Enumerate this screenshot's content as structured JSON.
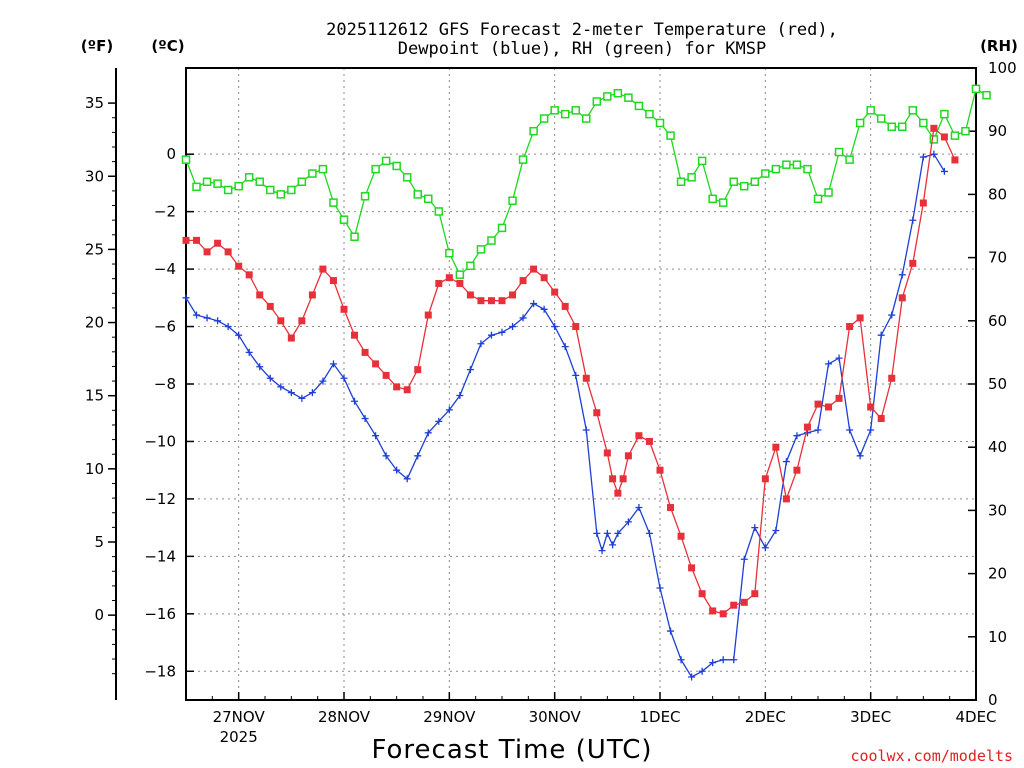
{
  "chart_data": {
    "type": "line",
    "title": "2025112612 GFS Forecast 2-meter Temperature (red),",
    "subtitle": "Dewpoint (blue), RH (green) for KMSP",
    "xlabel": "Forecast Time (UTC)",
    "credit": "coolwx.com/modelts",
    "axes": {
      "fahrenheit": {
        "label": "(ºF)",
        "ylim": [
          -5.8,
          37.4
        ],
        "ticks": [
          "35",
          "30",
          "25",
          "20",
          "15",
          "10",
          "5",
          "0"
        ],
        "tick_values": [
          35,
          30,
          25,
          20,
          15,
          10,
          5,
          0
        ]
      },
      "celsius": {
        "label": "(ºC)",
        "ylim": [
          -19,
          3
        ],
        "ticks": [
          "0",
          "−2",
          "−4",
          "−6",
          "−8",
          "−10",
          "−12",
          "−14",
          "−16",
          "−18"
        ],
        "tick_values": [
          0,
          -2,
          -4,
          -6,
          -8,
          -10,
          -12,
          -14,
          -16,
          -18
        ]
      },
      "rh": {
        "label": "(RH)",
        "ylim": [
          0,
          100
        ],
        "ticks": [
          "100",
          "90",
          "80",
          "70",
          "60",
          "50",
          "40",
          "30",
          "20",
          "10",
          "0"
        ],
        "tick_values": [
          100,
          90,
          80,
          70,
          60,
          50,
          40,
          30,
          20,
          10,
          0
        ]
      }
    },
    "x_axis": {
      "units": "days since 26NOV 12Z",
      "xlim": [
        0,
        7.5
      ],
      "ticks": [
        {
          "x": 0.5,
          "label": "27NOV",
          "sub": "2025"
        },
        {
          "x": 1.5,
          "label": "28NOV",
          "sub": ""
        },
        {
          "x": 2.5,
          "label": "29NOV",
          "sub": ""
        },
        {
          "x": 3.5,
          "label": "30NOV",
          "sub": ""
        },
        {
          "x": 4.5,
          "label": "1DEC",
          "sub": ""
        },
        {
          "x": 5.5,
          "label": "2DEC",
          "sub": ""
        },
        {
          "x": 6.5,
          "label": "3DEC",
          "sub": ""
        },
        {
          "x": 7.5,
          "label": "4DEC",
          "sub": ""
        }
      ]
    },
    "series": [
      {
        "name": "Temperature",
        "color": "#e8303a",
        "marker": "filled-square",
        "units": "degC",
        "points": [
          [
            0.0,
            -3.0
          ],
          [
            0.1,
            -3.0
          ],
          [
            0.2,
            -3.4
          ],
          [
            0.3,
            -3.1
          ],
          [
            0.4,
            -3.4
          ],
          [
            0.5,
            -3.9
          ],
          [
            0.6,
            -4.2
          ],
          [
            0.7,
            -4.9
          ],
          [
            0.8,
            -5.3
          ],
          [
            0.9,
            -5.8
          ],
          [
            1.0,
            -6.4
          ],
          [
            1.1,
            -5.8
          ],
          [
            1.2,
            -4.9
          ],
          [
            1.3,
            -4.0
          ],
          [
            1.4,
            -4.4
          ],
          [
            1.5,
            -5.4
          ],
          [
            1.6,
            -6.3
          ],
          [
            1.7,
            -6.9
          ],
          [
            1.8,
            -7.3
          ],
          [
            1.9,
            -7.7
          ],
          [
            2.0,
            -8.1
          ],
          [
            2.1,
            -8.2
          ],
          [
            2.2,
            -7.5
          ],
          [
            2.3,
            -5.6
          ],
          [
            2.4,
            -4.5
          ],
          [
            2.5,
            -4.3
          ],
          [
            2.6,
            -4.5
          ],
          [
            2.7,
            -4.9
          ],
          [
            2.8,
            -5.1
          ],
          [
            2.9,
            -5.1
          ],
          [
            3.0,
            -5.1
          ],
          [
            3.1,
            -4.9
          ],
          [
            3.2,
            -4.4
          ],
          [
            3.3,
            -4.0
          ],
          [
            3.4,
            -4.3
          ],
          [
            3.5,
            -4.8
          ],
          [
            3.6,
            -5.3
          ],
          [
            3.7,
            -6.0
          ],
          [
            3.8,
            -7.8
          ],
          [
            3.9,
            -9.0
          ],
          [
            4.0,
            -10.4
          ],
          [
            4.05,
            -11.3
          ],
          [
            4.1,
            -11.8
          ],
          [
            4.15,
            -11.3
          ],
          [
            4.2,
            -10.5
          ],
          [
            4.3,
            -9.8
          ],
          [
            4.4,
            -10.0
          ],
          [
            4.5,
            -11.0
          ],
          [
            4.6,
            -12.3
          ],
          [
            4.7,
            -13.3
          ],
          [
            4.8,
            -14.4
          ],
          [
            4.9,
            -15.3
          ],
          [
            5.0,
            -15.9
          ],
          [
            5.1,
            -16.0
          ],
          [
            5.2,
            -15.7
          ],
          [
            5.3,
            -15.6
          ],
          [
            5.4,
            -15.3
          ],
          [
            5.5,
            -11.3
          ],
          [
            5.6,
            -10.2
          ],
          [
            5.7,
            -12.0
          ],
          [
            5.8,
            -11.0
          ],
          [
            5.9,
            -9.5
          ],
          [
            6.0,
            -8.7
          ],
          [
            6.1,
            -8.8
          ],
          [
            6.2,
            -8.5
          ],
          [
            6.3,
            -6.0
          ],
          [
            6.4,
            -5.7
          ],
          [
            6.5,
            -8.8
          ],
          [
            6.6,
            -9.2
          ],
          [
            6.7,
            -7.8
          ],
          [
            6.8,
            -5.0
          ],
          [
            6.9,
            -3.8
          ],
          [
            7.0,
            -1.7
          ],
          [
            7.1,
            0.9
          ],
          [
            7.2,
            0.6
          ],
          [
            7.3,
            -0.2
          ]
        ]
      },
      {
        "name": "Dewpoint",
        "color": "#1e3fd6",
        "marker": "plus",
        "units": "degC",
        "points": [
          [
            0.0,
            -5.0
          ],
          [
            0.1,
            -5.6
          ],
          [
            0.2,
            -5.7
          ],
          [
            0.3,
            -5.8
          ],
          [
            0.4,
            -6.0
          ],
          [
            0.5,
            -6.3
          ],
          [
            0.6,
            -6.9
          ],
          [
            0.7,
            -7.4
          ],
          [
            0.8,
            -7.8
          ],
          [
            0.9,
            -8.1
          ],
          [
            1.0,
            -8.3
          ],
          [
            1.1,
            -8.5
          ],
          [
            1.2,
            -8.3
          ],
          [
            1.3,
            -7.9
          ],
          [
            1.4,
            -7.3
          ],
          [
            1.5,
            -7.8
          ],
          [
            1.6,
            -8.6
          ],
          [
            1.7,
            -9.2
          ],
          [
            1.8,
            -9.8
          ],
          [
            1.9,
            -10.5
          ],
          [
            2.0,
            -11.0
          ],
          [
            2.1,
            -11.3
          ],
          [
            2.2,
            -10.5
          ],
          [
            2.3,
            -9.7
          ],
          [
            2.4,
            -9.3
          ],
          [
            2.5,
            -8.9
          ],
          [
            2.6,
            -8.4
          ],
          [
            2.7,
            -7.5
          ],
          [
            2.8,
            -6.6
          ],
          [
            2.9,
            -6.3
          ],
          [
            3.0,
            -6.2
          ],
          [
            3.1,
            -6.0
          ],
          [
            3.2,
            -5.7
          ],
          [
            3.3,
            -5.2
          ],
          [
            3.4,
            -5.4
          ],
          [
            3.5,
            -6.0
          ],
          [
            3.6,
            -6.7
          ],
          [
            3.7,
            -7.7
          ],
          [
            3.8,
            -9.6
          ],
          [
            3.9,
            -13.2
          ],
          [
            3.95,
            -13.8
          ],
          [
            4.0,
            -13.2
          ],
          [
            4.05,
            -13.6
          ],
          [
            4.1,
            -13.2
          ],
          [
            4.2,
            -12.8
          ],
          [
            4.3,
            -12.3
          ],
          [
            4.4,
            -13.2
          ],
          [
            4.5,
            -15.1
          ],
          [
            4.6,
            -16.6
          ],
          [
            4.7,
            -17.6
          ],
          [
            4.8,
            -18.2
          ],
          [
            4.9,
            -18.0
          ],
          [
            5.0,
            -17.7
          ],
          [
            5.1,
            -17.6
          ],
          [
            5.2,
            -17.6
          ],
          [
            5.3,
            -14.1
          ],
          [
            5.4,
            -13.0
          ],
          [
            5.5,
            -13.7
          ],
          [
            5.6,
            -13.1
          ],
          [
            5.7,
            -10.7
          ],
          [
            5.8,
            -9.8
          ],
          [
            5.9,
            -9.7
          ],
          [
            6.0,
            -9.6
          ],
          [
            6.1,
            -7.3
          ],
          [
            6.2,
            -7.1
          ],
          [
            6.3,
            -9.6
          ],
          [
            6.4,
            -10.5
          ],
          [
            6.5,
            -9.6
          ],
          [
            6.6,
            -6.3
          ],
          [
            6.7,
            -5.6
          ],
          [
            6.8,
            -4.2
          ],
          [
            6.9,
            -2.3
          ],
          [
            7.0,
            -0.1
          ],
          [
            7.1,
            0.0
          ],
          [
            7.2,
            -0.6
          ]
        ]
      },
      {
        "name": "RH",
        "color": "#1fd81f",
        "marker": "open-square",
        "units": "%",
        "points": [
          [
            0.0,
            85.5
          ],
          [
            0.1,
            81.2
          ],
          [
            0.2,
            82.0
          ],
          [
            0.3,
            81.7
          ],
          [
            0.4,
            80.7
          ],
          [
            0.5,
            81.3
          ],
          [
            0.6,
            82.7
          ],
          [
            0.7,
            82.0
          ],
          [
            0.8,
            80.7
          ],
          [
            0.9,
            80.0
          ],
          [
            1.0,
            80.7
          ],
          [
            1.1,
            82.0
          ],
          [
            1.2,
            83.3
          ],
          [
            1.3,
            84.0
          ],
          [
            1.4,
            78.7
          ],
          [
            1.5,
            76.0
          ],
          [
            1.6,
            73.3
          ],
          [
            1.7,
            79.7
          ],
          [
            1.8,
            84.0
          ],
          [
            1.9,
            85.3
          ],
          [
            2.0,
            84.5
          ],
          [
            2.1,
            82.7
          ],
          [
            2.2,
            80.0
          ],
          [
            2.3,
            79.3
          ],
          [
            2.4,
            77.3
          ],
          [
            2.5,
            70.7
          ],
          [
            2.6,
            67.3
          ],
          [
            2.7,
            68.7
          ],
          [
            2.8,
            71.3
          ],
          [
            2.9,
            72.7
          ],
          [
            3.0,
            74.7
          ],
          [
            3.1,
            79.0
          ],
          [
            3.2,
            85.5
          ],
          [
            3.3,
            90.0
          ],
          [
            3.4,
            92.0
          ],
          [
            3.5,
            93.3
          ],
          [
            3.6,
            92.7
          ],
          [
            3.7,
            93.3
          ],
          [
            3.8,
            92.0
          ],
          [
            3.9,
            94.7
          ],
          [
            4.0,
            95.5
          ],
          [
            4.1,
            96.0
          ],
          [
            4.2,
            95.3
          ],
          [
            4.3,
            94.0
          ],
          [
            4.4,
            92.7
          ],
          [
            4.5,
            91.3
          ],
          [
            4.6,
            89.3
          ],
          [
            4.7,
            82.0
          ],
          [
            4.8,
            82.7
          ],
          [
            4.9,
            85.3
          ],
          [
            5.0,
            79.3
          ],
          [
            5.1,
            78.7
          ],
          [
            5.2,
            82.0
          ],
          [
            5.3,
            81.3
          ],
          [
            5.4,
            82.0
          ],
          [
            5.5,
            83.3
          ],
          [
            5.6,
            84.0
          ],
          [
            5.7,
            84.7
          ],
          [
            5.8,
            84.7
          ],
          [
            5.9,
            84.0
          ],
          [
            6.0,
            79.3
          ],
          [
            6.1,
            80.3
          ],
          [
            6.2,
            86.7
          ],
          [
            6.3,
            85.5
          ],
          [
            6.4,
            91.3
          ],
          [
            6.5,
            93.3
          ],
          [
            6.6,
            92.0
          ],
          [
            6.7,
            90.7
          ],
          [
            6.8,
            90.7
          ],
          [
            6.9,
            93.3
          ],
          [
            7.0,
            91.3
          ],
          [
            7.1,
            88.7
          ],
          [
            7.2,
            92.7
          ],
          [
            7.3,
            89.3
          ],
          [
            7.4,
            90.0
          ],
          [
            7.5,
            96.7
          ],
          [
            7.6,
            95.7
          ]
        ]
      }
    ]
  }
}
